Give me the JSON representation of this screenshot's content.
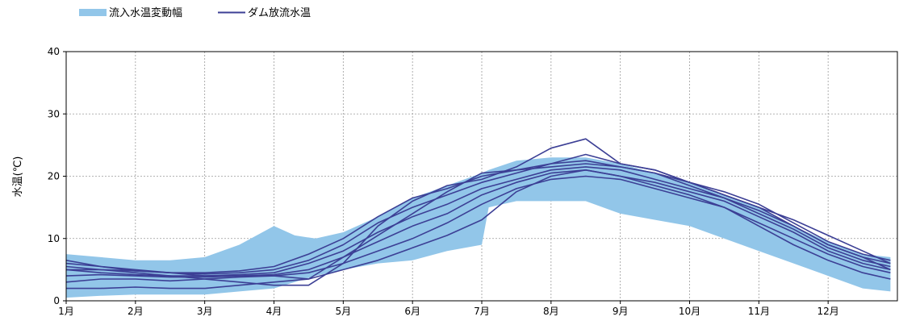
{
  "chart_data": {
    "type": "area",
    "title": "",
    "xlabel": "",
    "ylabel": "水温(℃)",
    "ylim": [
      0,
      40
    ],
    "xlim": [
      1,
      13
    ],
    "yticks": [
      0,
      10,
      20,
      30,
      40
    ],
    "xtick_labels": [
      "1月",
      "2月",
      "3月",
      "4月",
      "5月",
      "6月",
      "7月",
      "8月",
      "9月",
      "10月",
      "11月",
      "12月"
    ],
    "grid": true,
    "legend": "top-left",
    "colors": {
      "band": "#92c6e9",
      "line": "#3c3f95"
    },
    "series": [
      {
        "name": "流入水温変動幅",
        "kind": "band",
        "x": [
          1.0,
          1.5,
          2.0,
          2.5,
          3.0,
          3.5,
          4.0,
          4.3,
          4.6,
          5.0,
          5.5,
          6.0,
          6.5,
          7.0,
          7.1,
          7.5,
          8.0,
          8.5,
          9.0,
          9.5,
          10.0,
          10.5,
          11.0,
          11.5,
          12.0,
          12.5,
          12.9
        ],
        "low": [
          0.5,
          0.8,
          1.0,
          1.0,
          1.0,
          1.5,
          2.0,
          3.0,
          4.0,
          5.0,
          6.0,
          6.5,
          8.0,
          9.0,
          15.0,
          16.0,
          16.0,
          16.0,
          14.0,
          13.0,
          12.0,
          10.0,
          8.0,
          6.0,
          4.0,
          2.0,
          1.5
        ],
        "high": [
          7.5,
          7.0,
          6.5,
          6.5,
          7.0,
          9.0,
          12.0,
          10.5,
          10.0,
          11.0,
          13.5,
          16.5,
          18.5,
          20.5,
          21.0,
          22.5,
          23.0,
          23.0,
          22.0,
          20.5,
          19.0,
          17.0,
          15.0,
          12.0,
          9.5,
          7.5,
          7.0
        ]
      },
      {
        "name": "ダム放流水温",
        "kind": "lines",
        "x": [
          1.0,
          1.5,
          2.0,
          2.5,
          3.0,
          3.5,
          4.0,
          4.5,
          5.0,
          5.5,
          6.0,
          6.5,
          7.0,
          7.5,
          8.0,
          8.5,
          9.0,
          9.5,
          10.0,
          10.5,
          11.0,
          11.5,
          12.0,
          12.5,
          12.9
        ],
        "values": [
          [
            6.5,
            5.5,
            5.0,
            4.5,
            4.5,
            4.8,
            5.5,
            7.5,
            10.0,
            13.5,
            16.5,
            18.0,
            20.0,
            21.0,
            21.5,
            22.0,
            21.5,
            20.5,
            19.0,
            17.0,
            15.0,
            12.0,
            9.0,
            7.0,
            6.0
          ],
          [
            5.5,
            5.0,
            4.8,
            4.5,
            4.3,
            4.5,
            5.0,
            6.5,
            9.0,
            12.5,
            15.0,
            17.0,
            19.0,
            20.5,
            22.0,
            23.5,
            22.0,
            21.0,
            19.0,
            17.5,
            15.5,
            12.5,
            9.5,
            7.5,
            6.5
          ],
          [
            5.0,
            4.5,
            4.2,
            4.0,
            4.0,
            4.2,
            4.5,
            6.0,
            8.0,
            11.0,
            13.5,
            15.5,
            18.0,
            19.5,
            21.0,
            21.5,
            21.0,
            19.5,
            18.0,
            16.5,
            14.0,
            11.5,
            8.5,
            6.5,
            5.5
          ],
          [
            4.0,
            4.2,
            4.0,
            3.8,
            3.8,
            4.0,
            4.2,
            5.0,
            7.0,
            9.5,
            12.0,
            14.0,
            17.0,
            19.0,
            20.5,
            21.0,
            20.0,
            19.0,
            17.5,
            16.0,
            13.5,
            11.0,
            8.0,
            6.0,
            5.0
          ],
          [
            3.0,
            3.5,
            3.5,
            3.2,
            3.5,
            3.8,
            4.0,
            4.5,
            6.0,
            8.0,
            10.0,
            12.5,
            15.5,
            18.0,
            19.5,
            20.0,
            19.5,
            18.0,
            16.5,
            15.0,
            12.5,
            10.0,
            7.5,
            5.5,
            4.5
          ],
          [
            2.0,
            2.0,
            2.2,
            2.0,
            2.0,
            2.5,
            3.0,
            3.5,
            5.0,
            6.5,
            8.5,
            10.5,
            13.0,
            17.5,
            20.0,
            21.0,
            20.0,
            18.5,
            17.0,
            15.0,
            12.0,
            9.0,
            6.5,
            4.5,
            3.5
          ],
          [
            5.0,
            5.0,
            4.5,
            4.0,
            3.5,
            3.0,
            2.5,
            2.5,
            6.0,
            12.0,
            16.0,
            18.5,
            19.5,
            21.5,
            24.5,
            26.0,
            22.0,
            21.0,
            19.0,
            17.0,
            15.0,
            13.0,
            10.5,
            8.0,
            6.0
          ],
          [
            6.0,
            5.5,
            4.8,
            4.5,
            4.0,
            4.0,
            4.0,
            3.5,
            7.0,
            10.5,
            14.0,
            17.5,
            20.5,
            21.0,
            22.0,
            22.5,
            21.5,
            20.5,
            18.5,
            16.5,
            14.5,
            12.0,
            9.0,
            7.0,
            5.0
          ]
        ]
      }
    ]
  }
}
